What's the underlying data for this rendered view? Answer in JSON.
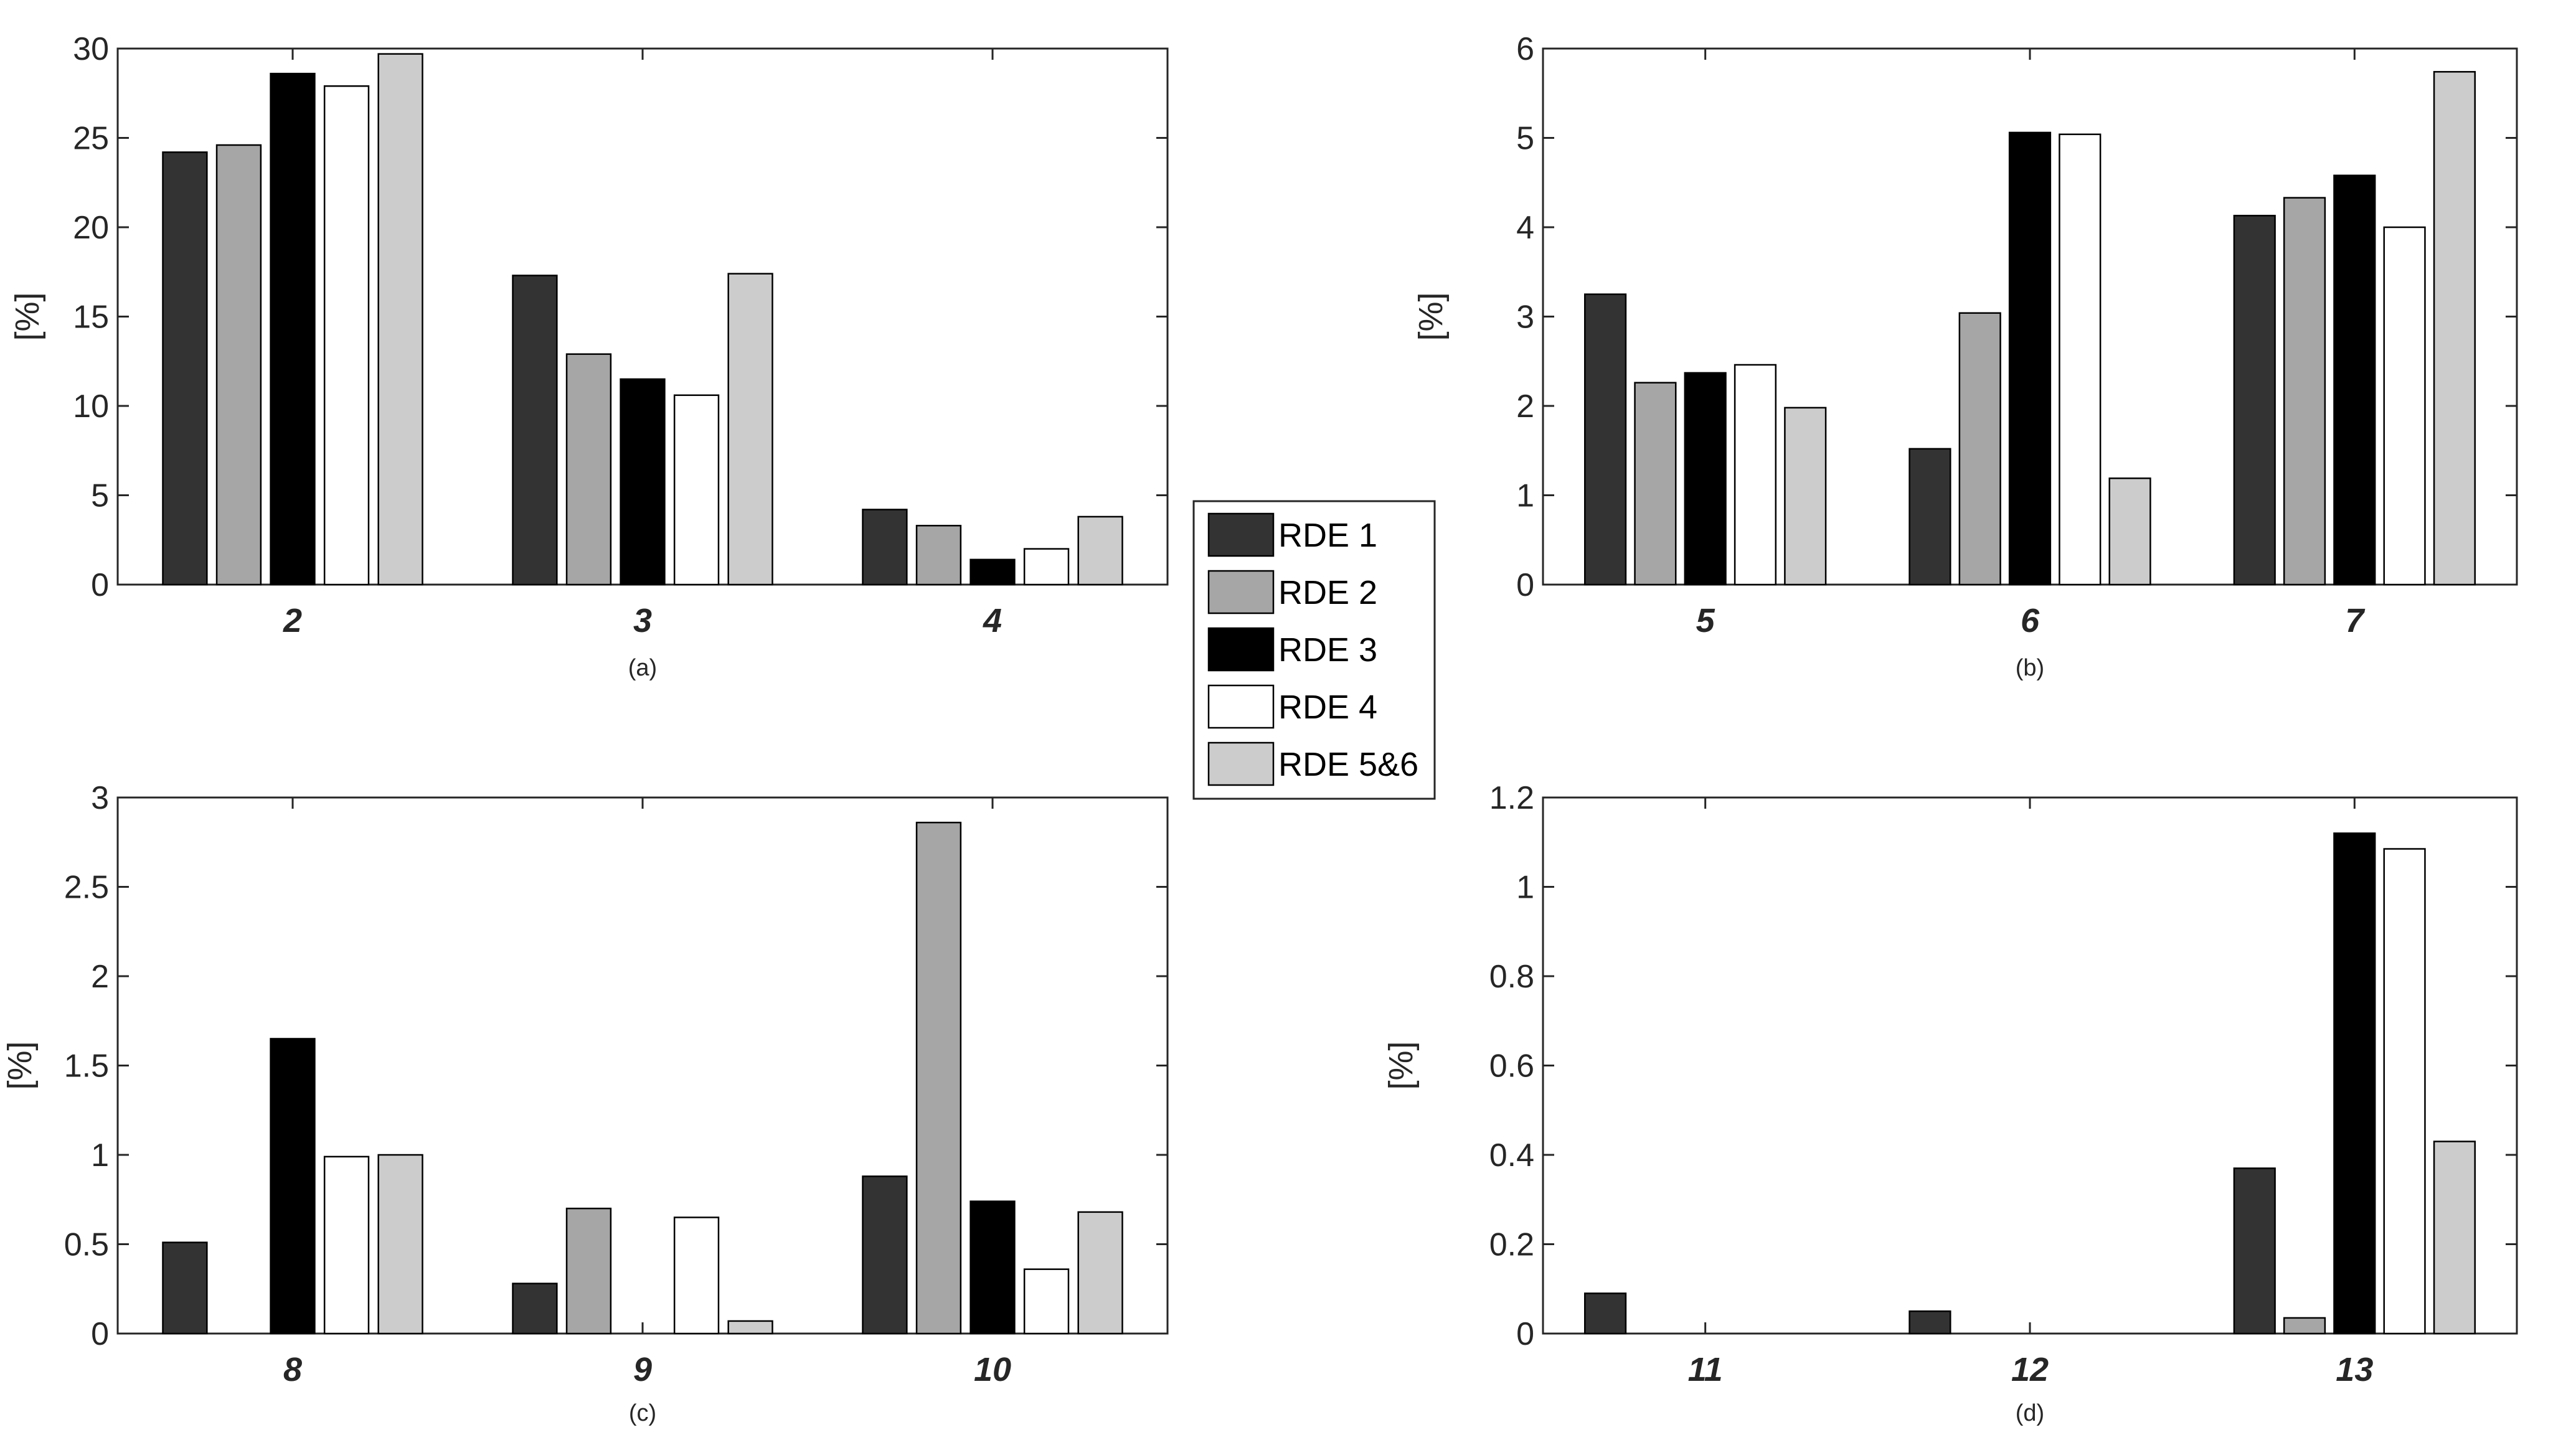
{
  "figure": {
    "legend": {
      "series": [
        "RDE 1",
        "RDE 2",
        "RDE 3",
        "RDE 4",
        "RDE 5&6"
      ],
      "colors": [
        "#333333",
        "#a6a6a6",
        "#000000",
        "#ffffff",
        "#cccccc"
      ]
    }
  },
  "chart_data": [
    {
      "type": "bar",
      "caption": "(a)",
      "ylabel": "[%]",
      "categories": [
        "2",
        "3",
        "4"
      ],
      "ylim": [
        0,
        30
      ],
      "yticks": [
        0,
        5,
        10,
        15,
        20,
        25,
        30
      ],
      "ytick_labels": [
        "0",
        "5",
        "10",
        "15",
        "20",
        "25",
        "30"
      ],
      "series": [
        {
          "name": "RDE 1",
          "values": [
            24.2,
            17.3,
            4.2
          ]
        },
        {
          "name": "RDE 2",
          "values": [
            24.6,
            12.9,
            3.3
          ]
        },
        {
          "name": "RDE 3",
          "values": [
            28.6,
            11.5,
            1.4
          ]
        },
        {
          "name": "RDE 4",
          "values": [
            27.9,
            10.6,
            2.0
          ]
        },
        {
          "name": "RDE 5&6",
          "values": [
            29.7,
            17.4,
            3.8
          ]
        }
      ]
    },
    {
      "type": "bar",
      "caption": "(b)",
      "ylabel": "[%]",
      "categories": [
        "5",
        "6",
        "7"
      ],
      "ylim": [
        0,
        6
      ],
      "yticks": [
        0,
        1,
        2,
        3,
        4,
        5,
        6
      ],
      "ytick_labels": [
        "0",
        "1",
        "2",
        "3",
        "4",
        "5",
        "6"
      ],
      "series": [
        {
          "name": "RDE 1",
          "values": [
            3.25,
            1.52,
            4.13
          ]
        },
        {
          "name": "RDE 2",
          "values": [
            2.26,
            3.04,
            4.33
          ]
        },
        {
          "name": "RDE 3",
          "values": [
            2.37,
            5.06,
            4.58
          ]
        },
        {
          "name": "RDE 4",
          "values": [
            2.46,
            5.04,
            4.0
          ]
        },
        {
          "name": "RDE 5&6",
          "values": [
            1.98,
            1.19,
            5.74
          ]
        }
      ]
    },
    {
      "type": "bar",
      "caption": "(c)",
      "ylabel": "[%]",
      "categories": [
        "8",
        "9",
        "10"
      ],
      "ylim": [
        0,
        3
      ],
      "yticks": [
        0,
        0.5,
        1,
        1.5,
        2,
        2.5,
        3
      ],
      "ytick_labels": [
        "0",
        "0.5",
        "1",
        "1.5",
        "2",
        "2.5",
        "3"
      ],
      "series": [
        {
          "name": "RDE 1",
          "values": [
            0.51,
            0.28,
            0.88
          ]
        },
        {
          "name": "RDE 2",
          "values": [
            0,
            0.7,
            2.86
          ]
        },
        {
          "name": "RDE 3",
          "values": [
            1.65,
            0,
            0.74
          ]
        },
        {
          "name": "RDE 4",
          "values": [
            0.99,
            0.65,
            0.36
          ]
        },
        {
          "name": "RDE 5&6",
          "values": [
            1.0,
            0.07,
            0.68
          ]
        }
      ]
    },
    {
      "type": "bar",
      "caption": "(d)",
      "ylabel": "[%]",
      "categories": [
        "11",
        "12",
        "13"
      ],
      "ylim": [
        0,
        1.2
      ],
      "yticks": [
        0,
        0.2,
        0.4,
        0.6,
        0.8,
        1.0,
        1.2
      ],
      "ytick_labels": [
        "0",
        "0.2",
        "0.4",
        "0.6",
        "0.8",
        "1",
        "1.2"
      ],
      "series": [
        {
          "name": "RDE 1",
          "values": [
            0.09,
            0.05,
            0.37
          ]
        },
        {
          "name": "RDE 2",
          "values": [
            0,
            0,
            0.035
          ]
        },
        {
          "name": "RDE 3",
          "values": [
            0,
            0,
            1.12
          ]
        },
        {
          "name": "RDE 4",
          "values": [
            0,
            0,
            1.085
          ]
        },
        {
          "name": "RDE 5&6",
          "values": [
            0,
            0,
            0.43
          ]
        }
      ]
    }
  ]
}
